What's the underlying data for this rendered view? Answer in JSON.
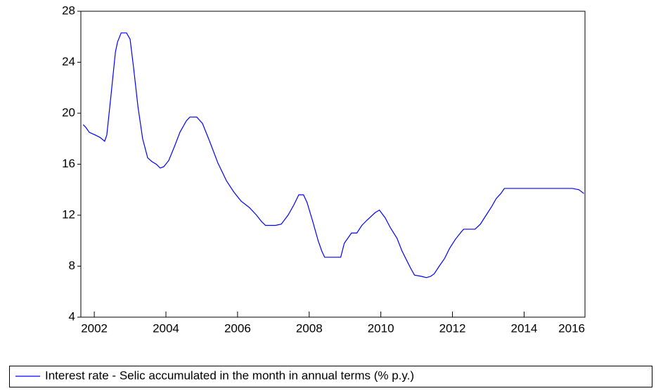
{
  "chart_data": {
    "type": "line",
    "x": [
      2001.69,
      2001.76,
      2001.86,
      2002.02,
      2002.16,
      2002.29,
      2002.35,
      2002.47,
      2002.59,
      2002.65,
      2002.75,
      2002.9,
      2003.0,
      2003.1,
      2003.22,
      2003.35,
      2003.49,
      2003.61,
      2003.73,
      2003.84,
      2003.94,
      2004.08,
      2004.24,
      2004.39,
      2004.57,
      2004.67,
      2004.86,
      2005.02,
      2005.22,
      2005.45,
      2005.69,
      2005.9,
      2006.1,
      2006.33,
      2006.53,
      2006.67,
      2006.78,
      2007.06,
      2007.22,
      2007.41,
      2007.57,
      2007.71,
      2007.84,
      2007.94,
      2008.1,
      2008.25,
      2008.35,
      2008.43,
      2008.88,
      2008.98,
      2009.18,
      2009.33,
      2009.47,
      2009.61,
      2009.84,
      2009.96,
      2010.12,
      2010.27,
      2010.45,
      2010.59,
      2010.75,
      2010.84,
      2010.94,
      2011.14,
      2011.27,
      2011.39,
      2011.49,
      2011.63,
      2011.78,
      2011.92,
      2012.08,
      2012.22,
      2012.31,
      2012.63,
      2012.78,
      2012.94,
      2013.1,
      2013.22,
      2013.35,
      2013.45,
      2014.86,
      2015.35,
      2015.53,
      2015.67
    ],
    "series": [
      {
        "name": "Interest rate - Selic accumulated in the month in annual terms (% p.y.)",
        "color": "#0000ff",
        "values": [
          19.1,
          18.9,
          18.5,
          18.3,
          18.1,
          17.8,
          18.3,
          21.5,
          24.8,
          25.6,
          26.3,
          26.3,
          25.8,
          23.5,
          20.5,
          18.0,
          16.5,
          16.2,
          16.0,
          15.7,
          15.8,
          16.3,
          17.4,
          18.5,
          19.4,
          19.7,
          19.7,
          19.2,
          17.8,
          16.1,
          14.7,
          13.8,
          13.1,
          12.6,
          12.0,
          11.5,
          11.2,
          11.2,
          11.3,
          12.0,
          12.8,
          13.6,
          13.6,
          13.0,
          11.5,
          10.0,
          9.2,
          8.7,
          8.7,
          9.8,
          10.6,
          10.6,
          11.2,
          11.6,
          12.2,
          12.4,
          11.8,
          11.0,
          10.2,
          9.2,
          8.3,
          7.8,
          7.3,
          7.2,
          7.1,
          7.2,
          7.4,
          8.0,
          8.6,
          9.4,
          10.1,
          10.6,
          10.9,
          10.9,
          11.3,
          12.0,
          12.7,
          13.3,
          13.7,
          14.1,
          14.1,
          14.1,
          14.0,
          13.7
        ]
      }
    ],
    "xlim": [
      2001.625,
      2015.7
    ],
    "xticks": [
      2002,
      2004,
      2006,
      2008,
      2010,
      2012,
      2014,
      2016
    ],
    "ylim": [
      4,
      28
    ],
    "yticks": [
      4,
      8,
      12,
      16,
      20,
      24,
      28
    ]
  }
}
